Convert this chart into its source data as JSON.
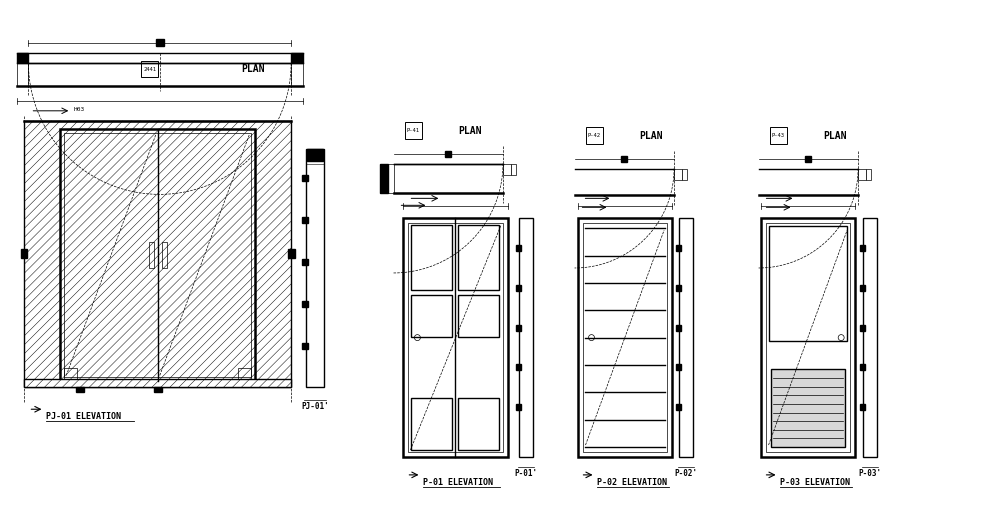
{
  "bg_color": "#ffffff",
  "line_color": "#000000",
  "labels": {
    "pj01_elev": "PJ-01 ELEVATION",
    "pj01_side": "PJ-01'",
    "p01_elev": "P-01 ELEVATION",
    "p01_side": "P-01'",
    "p02_elev": "P-02 ELEVATION",
    "p02_side": "P-02'",
    "p03_elev": "P-03 ELEVATION",
    "p03_side": "P-03'",
    "plan": "PLAN"
  },
  "badge_labels": {
    "pj01": "2441",
    "p01": "P-41",
    "p02": "P-42",
    "p03": "P-43"
  }
}
